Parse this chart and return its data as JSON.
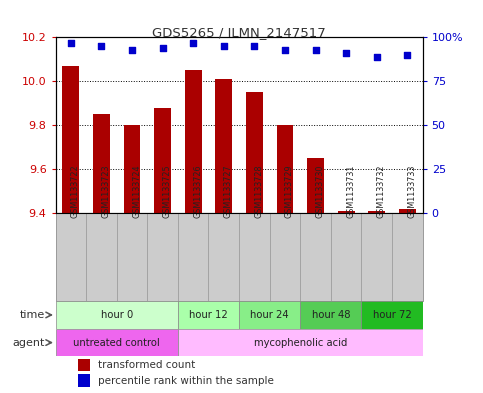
{
  "title": "GDS5265 / ILMN_2147517",
  "samples": [
    "GSM1133722",
    "GSM1133723",
    "GSM1133724",
    "GSM1133725",
    "GSM1133726",
    "GSM1133727",
    "GSM1133728",
    "GSM1133729",
    "GSM1133730",
    "GSM1133731",
    "GSM1133732",
    "GSM1133733"
  ],
  "bar_values": [
    10.07,
    9.85,
    9.8,
    9.88,
    10.05,
    10.01,
    9.95,
    9.8,
    9.65,
    9.41,
    9.41,
    9.42
  ],
  "dot_values": [
    97,
    95,
    93,
    94,
    97,
    95,
    95,
    93,
    93,
    91,
    89,
    90
  ],
  "ylim_left": [
    9.4,
    10.2
  ],
  "ylim_right": [
    0,
    100
  ],
  "yticks_left": [
    9.4,
    9.6,
    9.8,
    10.0,
    10.2
  ],
  "yticks_right": [
    0,
    25,
    50,
    75,
    100
  ],
  "bar_color": "#aa0000",
  "dot_color": "#0000cc",
  "grid_color": "#000000",
  "time_groups": [
    {
      "label": "hour 0",
      "start": 0,
      "end": 4,
      "color": "#ccffcc"
    },
    {
      "label": "hour 12",
      "start": 4,
      "end": 6,
      "color": "#aaffaa"
    },
    {
      "label": "hour 24",
      "start": 6,
      "end": 8,
      "color": "#88ee88"
    },
    {
      "label": "hour 48",
      "start": 8,
      "end": 10,
      "color": "#55cc55"
    },
    {
      "label": "hour 72",
      "start": 10,
      "end": 12,
      "color": "#22bb22"
    }
  ],
  "agent_groups": [
    {
      "label": "untreated control",
      "start": 0,
      "end": 4,
      "color": "#ee66ee"
    },
    {
      "label": "mycophenolic acid",
      "start": 4,
      "end": 12,
      "color": "#ffbbff"
    }
  ],
  "legend_bar_label": "transformed count",
  "legend_dot_label": "percentile rank within the sample",
  "time_label": "time",
  "agent_label": "agent",
  "background_color": "#ffffff",
  "plot_bg_color": "#ffffff",
  "border_color": "#000000",
  "sample_cell_color": "#cccccc",
  "sample_cell_border": "#999999"
}
